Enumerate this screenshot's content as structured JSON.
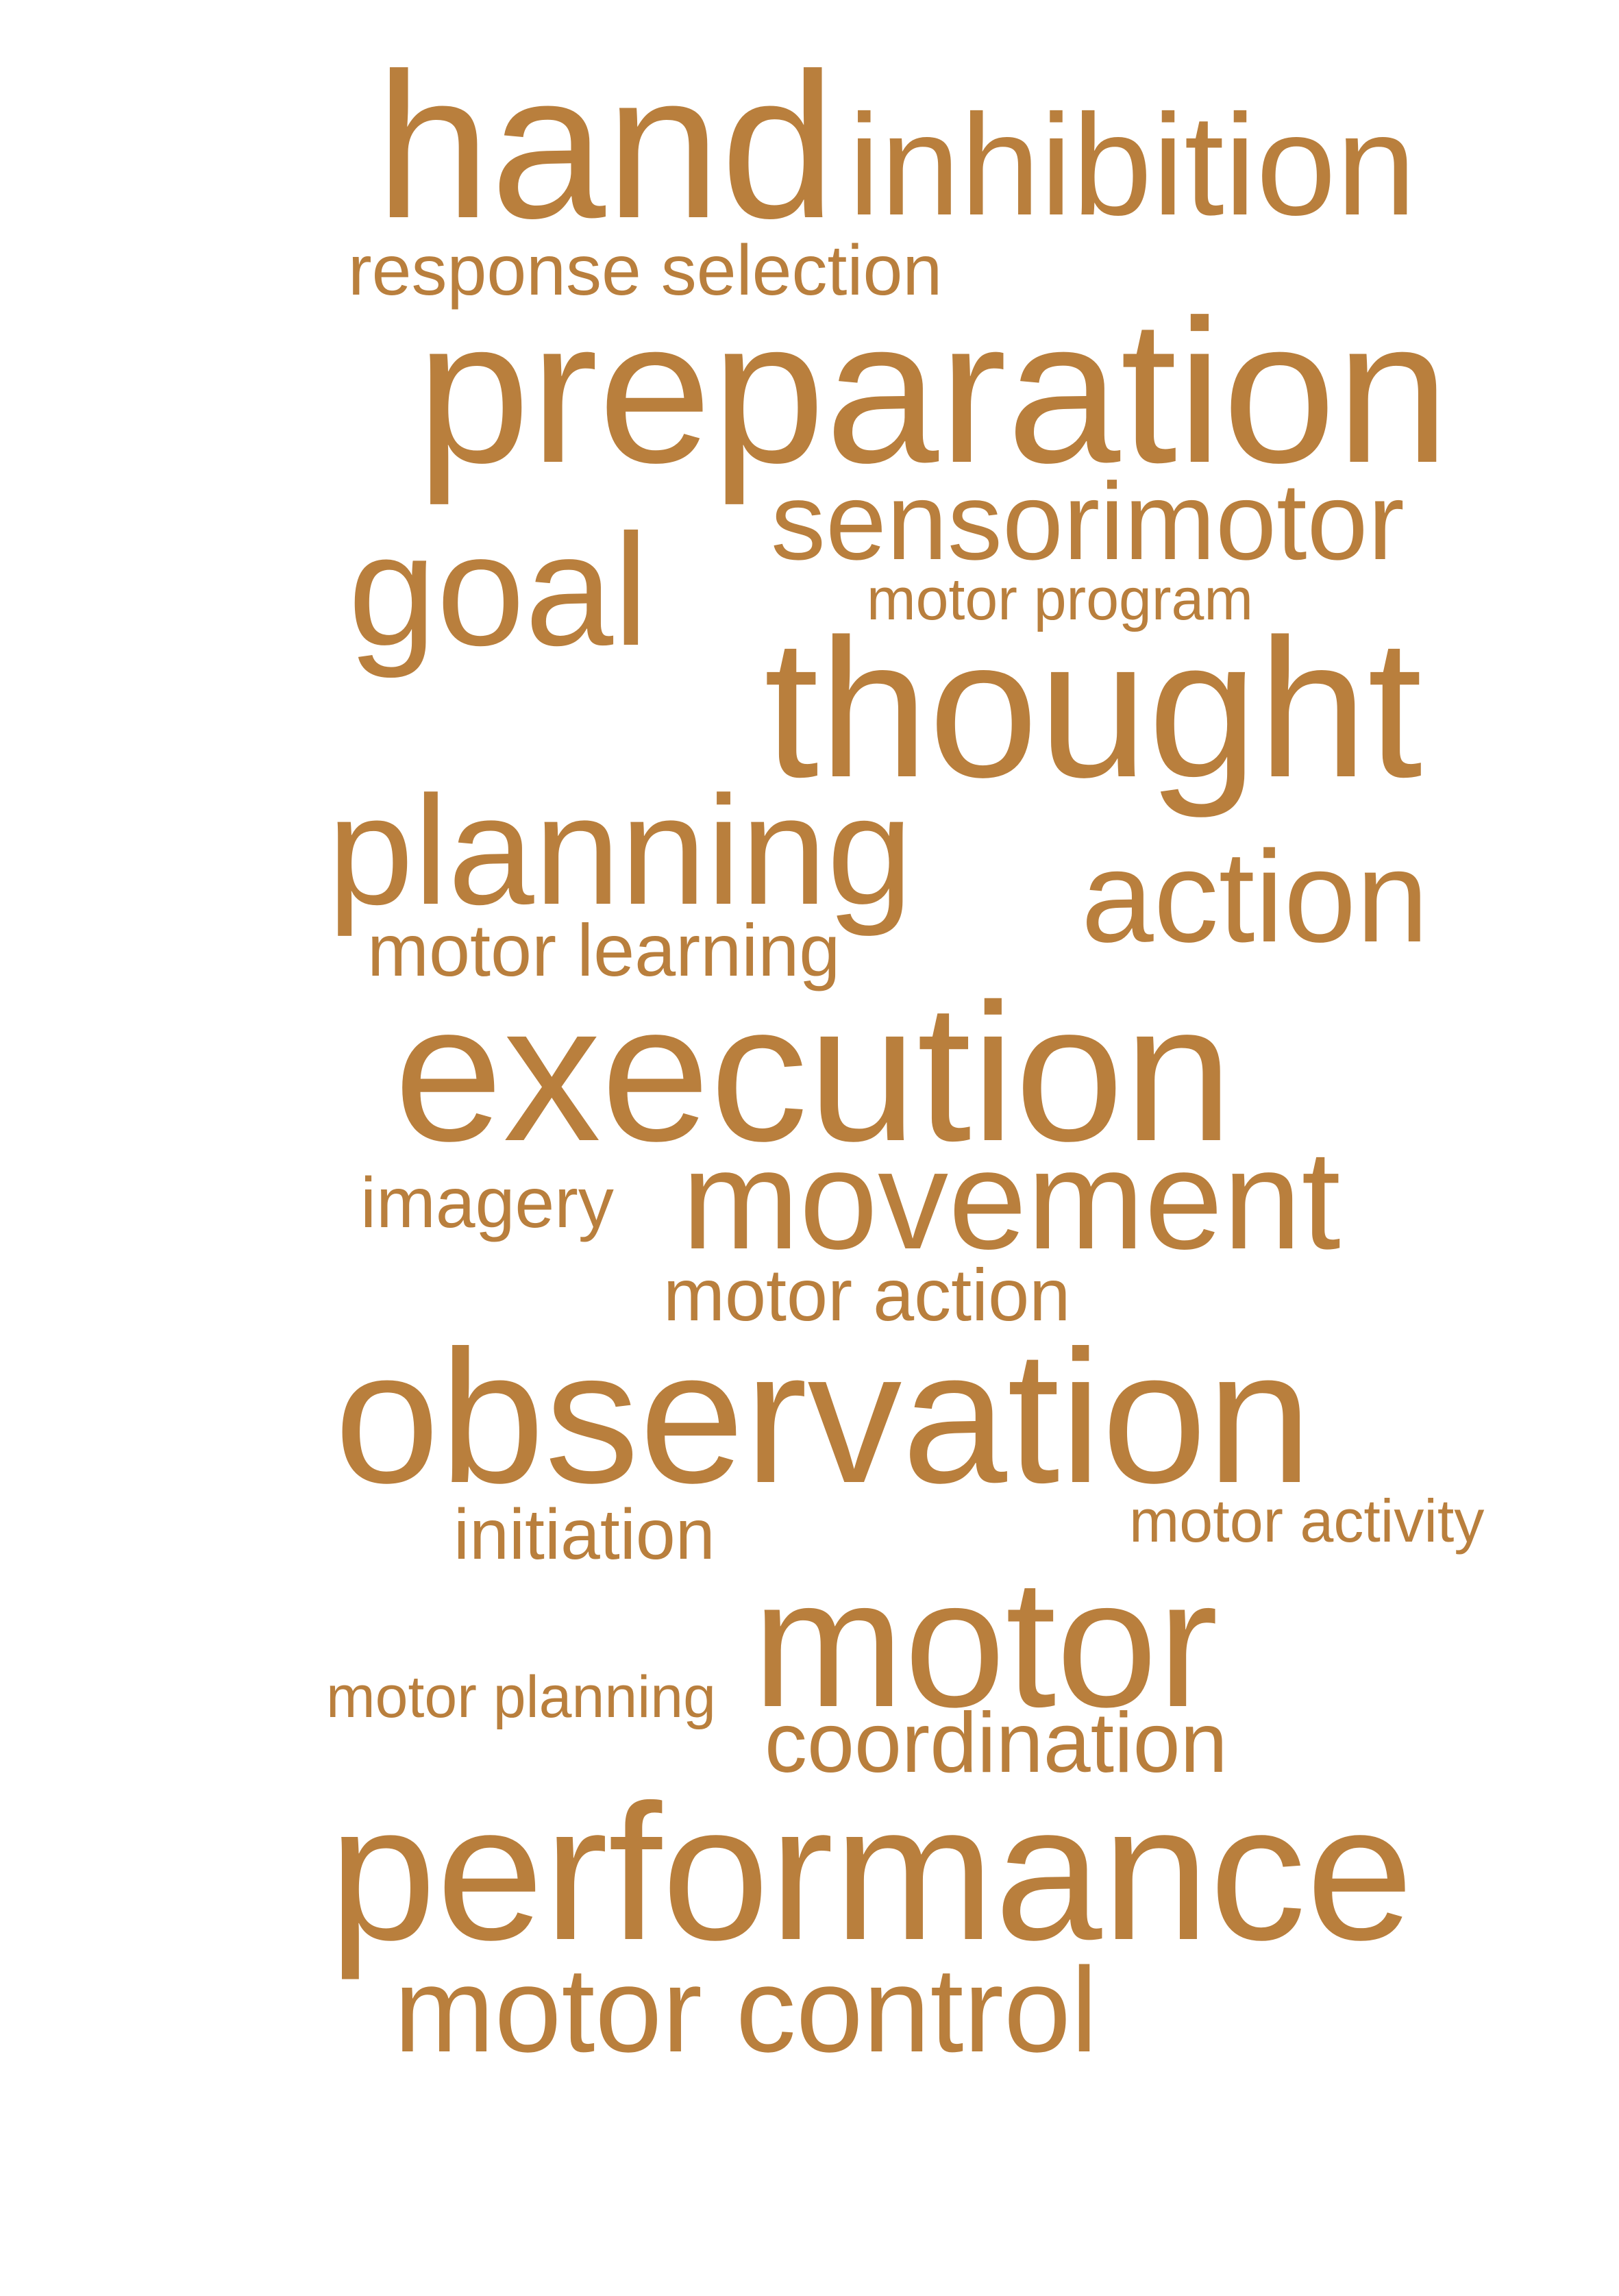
{
  "style": {
    "word_color": "#b97f3d",
    "background": "#ffffff"
  },
  "words": {
    "hand": "hand",
    "inhibition": "inhibition",
    "response_selection": "response selection",
    "preparation": "preparation",
    "sensorimotor": "sensorimotor",
    "goal": "goal",
    "motor_program": "motor program",
    "thought": "thought",
    "planning": "planning",
    "action": "action",
    "motor_learning": "motor learning",
    "execution": "execution",
    "imagery": "imagery",
    "movement": "movement",
    "motor_action": "motor action",
    "observation": "observation",
    "initiation": "initiation",
    "motor_activity": "motor activity",
    "motor": "motor",
    "motor_planning": "motor planning",
    "coordination": "coordination",
    "performance": "performance",
    "motor_control": "motor control"
  }
}
